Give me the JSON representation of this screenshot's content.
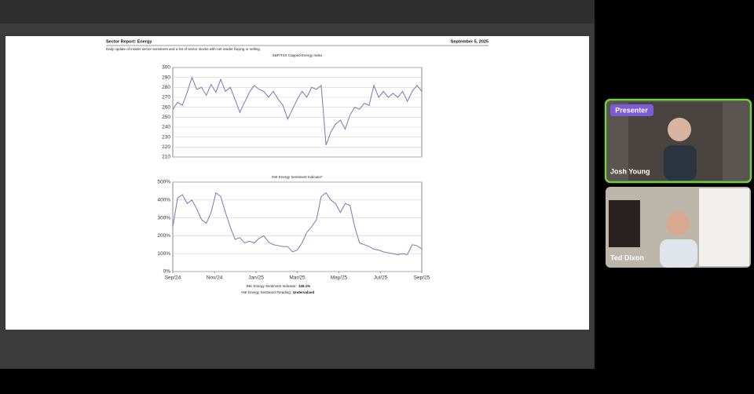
{
  "header": {
    "title": "Sector Report: Energy",
    "date": "September 5, 2025"
  },
  "subtitle": "Daily update of insider sector sentiment and a list of sector stocks with net insider buying or selling.",
  "chart_data": [
    {
      "type": "line",
      "title": "S&P/TSX Capped Energy Index",
      "color": "#7b74b8",
      "grid": true,
      "values": [
        258,
        265,
        262,
        275,
        290,
        278,
        280,
        272,
        283,
        275,
        288,
        276,
        280,
        268,
        255,
        265,
        275,
        282,
        278,
        276,
        270,
        276,
        268,
        262,
        248,
        258,
        268,
        276,
        270,
        280,
        278,
        282,
        222,
        235,
        243,
        247,
        238,
        252,
        260,
        258,
        264,
        262,
        282,
        270,
        276,
        270,
        274,
        270,
        276,
        266,
        276,
        282,
        276
      ],
      "xlim": [
        0,
        52
      ],
      "ylim": [
        210,
        300
      ],
      "yticks": [
        210,
        220,
        230,
        240,
        250,
        260,
        270,
        280,
        290,
        300
      ]
    },
    {
      "type": "line",
      "title": "INK Energy Sentiment Indicator*",
      "color": "#7b74b8",
      "grid": true,
      "values": [
        250,
        410,
        430,
        380,
        400,
        350,
        290,
        270,
        330,
        440,
        420,
        330,
        250,
        180,
        190,
        160,
        170,
        160,
        185,
        200,
        165,
        150,
        145,
        140,
        140,
        110,
        120,
        160,
        220,
        250,
        290,
        420,
        440,
        400,
        380,
        330,
        380,
        370,
        250,
        160,
        150,
        140,
        125,
        120,
        110,
        105,
        100,
        95,
        100,
        95,
        150,
        145,
        126
      ],
      "xlim": [
        0,
        52
      ],
      "ylim": [
        0,
        500
      ],
      "yticks": [
        {
          "value": 0,
          "label": "0%"
        },
        {
          "value": 100,
          "label": "100%"
        },
        {
          "value": 200,
          "label": "200%"
        },
        {
          "value": 300,
          "label": "300%"
        },
        {
          "value": 400,
          "label": "400%"
        },
        {
          "value": 500,
          "label": "500%"
        }
      ],
      "xticks": [
        {
          "value": 0,
          "label": "Sep/24"
        },
        {
          "value": 8.7,
          "label": "Nov/24"
        },
        {
          "value": 17.4,
          "label": "Jan/25"
        },
        {
          "value": 26,
          "label": "Mar/25"
        },
        {
          "value": 34.7,
          "label": "May/25"
        },
        {
          "value": 43.4,
          "label": "Jul/25"
        },
        {
          "value": 52,
          "label": "Sep/25"
        }
      ]
    }
  ],
  "footer": {
    "indicator_label": "INK Energy Sentiment Indicator:",
    "indicator_value": "126.1%",
    "reading_label": "INK Energy Sentiment Reading:",
    "reading_value": "Undervalued"
  },
  "participants": [
    {
      "role": "Presenter",
      "name": "Josh Young"
    },
    {
      "name": "Ted Dixon"
    }
  ]
}
